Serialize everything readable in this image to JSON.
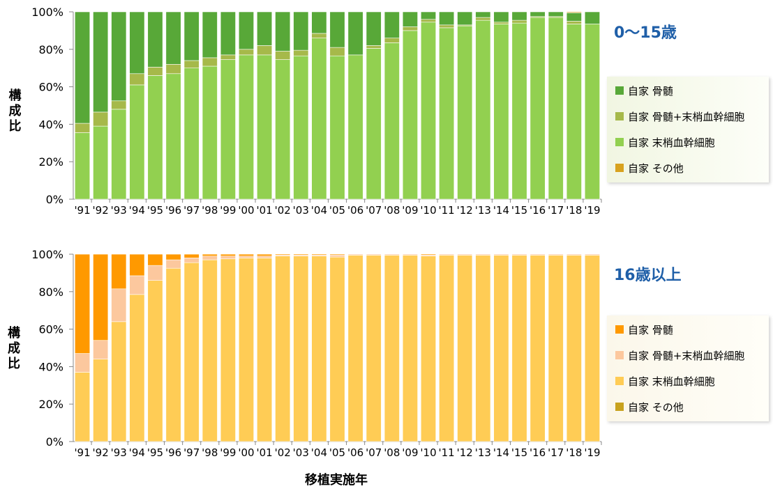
{
  "xlabel": "移植実施年",
  "chart_data": [
    {
      "type": "bar",
      "stacked": true,
      "normalized": true,
      "title": "0〜15歳",
      "ylabel": "構成比",
      "ylim": [
        0,
        100
      ],
      "yticks": [
        "0%",
        "20%",
        "40%",
        "60%",
        "80%",
        "100%"
      ],
      "categories": [
        "'91",
        "'92",
        "'93",
        "'94",
        "'95",
        "'96",
        "'97",
        "'98",
        "'99",
        "'00",
        "'01",
        "'02",
        "'03",
        "'04",
        "'05",
        "'06",
        "'07",
        "'08",
        "'09",
        "'10",
        "'11",
        "'12",
        "'13",
        "'14",
        "'15",
        "'16",
        "'17",
        "'18",
        "'19"
      ],
      "legend_position": "right",
      "series": [
        {
          "name": "自家 末梢血幹細胞",
          "color": "#92D050",
          "values": [
            35.5,
            39,
            48,
            61,
            66,
            67,
            70,
            71,
            74.5,
            77,
            77,
            74.5,
            76.5,
            86,
            76.5,
            77,
            80.5,
            83.5,
            90,
            94.5,
            91.5,
            92.5,
            95.5,
            93.5,
            94,
            97,
            97,
            93.5,
            93.5
          ]
        },
        {
          "name": "自家 骨髄+末梢血幹細胞",
          "color": "#A6B94A",
          "values": [
            5,
            7.5,
            4.5,
            6,
            4.5,
            5,
            4,
            4.5,
            2.5,
            3,
            5,
            4.5,
            3,
            2.5,
            4.5,
            0,
            1.5,
            2.5,
            2,
            1.5,
            1.5,
            0.5,
            1.5,
            1,
            1.5,
            0.5,
            0.5,
            1.5,
            0
          ]
        },
        {
          "name": "自家 骨髄",
          "color": "#58A838",
          "values": [
            59.5,
            53.5,
            47.5,
            33,
            29.5,
            28,
            26,
            24.5,
            23,
            20,
            18,
            21,
            20.5,
            11.5,
            19,
            23,
            18,
            14,
            8,
            4,
            7,
            7,
            3,
            5.5,
            4.5,
            2.5,
            2.5,
            4.5,
            6.5
          ]
        },
        {
          "name": "自家 その他",
          "color": "#D8A21E",
          "values": [
            0,
            0,
            0,
            0,
            0,
            0,
            0,
            0,
            0,
            0,
            0,
            0,
            0,
            0,
            0,
            0,
            0,
            0,
            0,
            0,
            0,
            0,
            0,
            0,
            0,
            0,
            0,
            0.5,
            0
          ]
        }
      ]
    },
    {
      "type": "bar",
      "stacked": true,
      "normalized": true,
      "title": "16歳以上",
      "ylabel": "構成比",
      "ylim": [
        0,
        100
      ],
      "yticks": [
        "0%",
        "20%",
        "40%",
        "60%",
        "80%",
        "100%"
      ],
      "categories": [
        "'91",
        "'92",
        "'93",
        "'94",
        "'95",
        "'96",
        "'97",
        "'98",
        "'99",
        "'00",
        "'01",
        "'02",
        "'03",
        "'04",
        "'05",
        "'06",
        "'07",
        "'08",
        "'09",
        "'10",
        "'11",
        "'12",
        "'13",
        "'14",
        "'15",
        "'16",
        "'17",
        "'18",
        "'19"
      ],
      "legend_position": "right",
      "series": [
        {
          "name": "自家 末梢血幹細胞",
          "color": "#FFCC55",
          "values": [
            37,
            44,
            64,
            78.5,
            86,
            92.5,
            95.5,
            97,
            97.5,
            98,
            98,
            99,
            99,
            99,
            98.5,
            99.5,
            99.5,
            99.5,
            99.5,
            99,
            99.5,
            99.5,
            99.5,
            99.5,
            99.5,
            99.5,
            99.5,
            99.5,
            99.5
          ]
        },
        {
          "name": "自家 骨髄+末梢血幹細胞",
          "color": "#FCC89E",
          "values": [
            10,
            10,
            17.5,
            10,
            8,
            4.5,
            2.5,
            2,
            1.5,
            1,
            1,
            0.5,
            0.5,
            0.5,
            1,
            0.5,
            0.5,
            0.5,
            0.5,
            0.5,
            0.5,
            0.5,
            0.5,
            0.5,
            0.5,
            0.5,
            0.5,
            0.5,
            0.5
          ]
        },
        {
          "name": "自家 骨髄",
          "color": "#FF9900",
          "values": [
            53,
            46,
            18.5,
            11.5,
            6,
            3,
            2,
            1,
            1,
            1,
            1,
            0.5,
            0.5,
            0.5,
            0.5,
            0,
            0,
            0,
            0,
            0.5,
            0,
            0,
            0,
            0,
            0,
            0,
            0,
            0,
            0
          ]
        },
        {
          "name": "自家 その他",
          "color": "#C8A21E",
          "values": [
            0,
            0,
            0,
            0,
            0,
            0,
            0,
            0,
            0,
            0,
            0,
            0,
            0,
            0,
            0,
            0,
            0,
            0,
            0,
            0,
            0,
            0,
            0,
            0,
            0,
            0,
            0,
            0,
            0
          ]
        }
      ]
    }
  ],
  "legends": [
    {
      "items": [
        "自家 骨髄",
        "自家 骨髄+末梢血幹細胞",
        "自家 末梢血幹細胞",
        "自家 その他"
      ],
      "colors": [
        "#58A838",
        "#A6B94A",
        "#92D050",
        "#D8A21E"
      ]
    },
    {
      "items": [
        "自家 骨髄",
        "自家 骨髄+末梢血幹細胞",
        "自家 末梢血幹細胞",
        "自家 その他"
      ],
      "colors": [
        "#FF9900",
        "#FCC89E",
        "#FFCC55",
        "#C8A21E"
      ]
    }
  ],
  "colors": {
    "title": "#1F5FA8",
    "text": "#000000",
    "axis": "#888888",
    "legend_bg": "#F6F9EC"
  }
}
